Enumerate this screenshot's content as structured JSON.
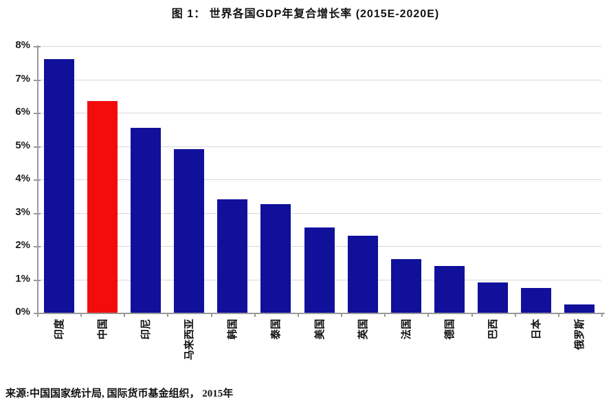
{
  "title": "图 1： 世界各国GDP年复合增长率 (2015E-2020E)",
  "source_note": "来源:中国国家统计局, 国际货币基金组织， 2015年",
  "colors": {
    "bar_default": "#10109b",
    "bar_highlight": "#f20c0c",
    "gridline": "#d8d8d8",
    "axis": "#9a9a9a"
  },
  "chart_data": {
    "type": "bar",
    "title": "图 1： 世界各国GDP年复合增长率 (2015E-2020E)",
    "categories": [
      "印度",
      "中国",
      "印尼",
      "马来西亚",
      "韩国",
      "泰国",
      "美国",
      "英国",
      "法国",
      "德国",
      "巴西",
      "日本",
      "俄罗斯"
    ],
    "values": [
      7.6,
      6.35,
      5.55,
      4.9,
      3.4,
      3.25,
      2.55,
      2.3,
      1.6,
      1.4,
      0.9,
      0.75,
      0.25
    ],
    "highlight_index": 1,
    "highlight_category": "中国",
    "xlabel": "",
    "ylabel": "",
    "ylim": [
      0,
      8
    ],
    "ytick_step": 1,
    "ytick_labels": [
      "0%",
      "1%",
      "2%",
      "3%",
      "4%",
      "5%",
      "6%",
      "7%",
      "8%"
    ],
    "grid": "horizontal",
    "legend": "none",
    "bar_orientation": "vertical",
    "xtick_label_rotation_deg": 90,
    "source": "来源:中国国家统计局, 国际货币基金组织， 2015年"
  }
}
